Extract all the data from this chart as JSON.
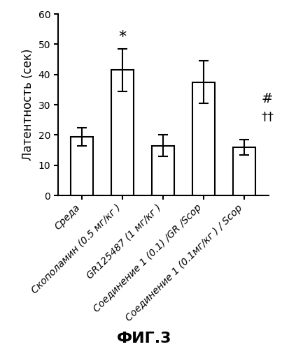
{
  "categories": [
    "Среда",
    "Скополамин (0.5 мг/кг )",
    "GR125487 (1 мг/кг )",
    "Соединение 1 (0.1) /GR /Scop",
    "Соединение 1 (0.1мг/кг ) / Scop"
  ],
  "values": [
    19.5,
    41.5,
    16.5,
    37.5,
    16.0
  ],
  "errors": [
    3.0,
    7.0,
    3.5,
    7.0,
    2.5
  ],
  "bar_color": "#ffffff",
  "bar_edgecolor": "#000000",
  "bar_linewidth": 1.5,
  "errorbar_color": "#000000",
  "errorbar_linewidth": 1.5,
  "errorbar_capsize": 5,
  "ylabel": "Латентность (сек)",
  "ylabel_fontsize": 12,
  "ylim": [
    0,
    60
  ],
  "yticks": [
    0,
    10,
    20,
    30,
    40,
    50,
    60
  ],
  "title": "ФИГ.3",
  "title_fontsize": 16,
  "title_fontweight": "bold",
  "star_annotation": {
    "text": "*",
    "bar_index": 1,
    "fontsize": 16
  },
  "side_annotations": [
    {
      "text": "#",
      "y": 32,
      "fontsize": 14
    },
    {
      "text": "††",
      "y": 26,
      "fontsize": 13
    }
  ],
  "tick_fontsize": 10,
  "background_color": "#ffffff",
  "spine_linewidth": 1.5,
  "bar_width": 0.55
}
